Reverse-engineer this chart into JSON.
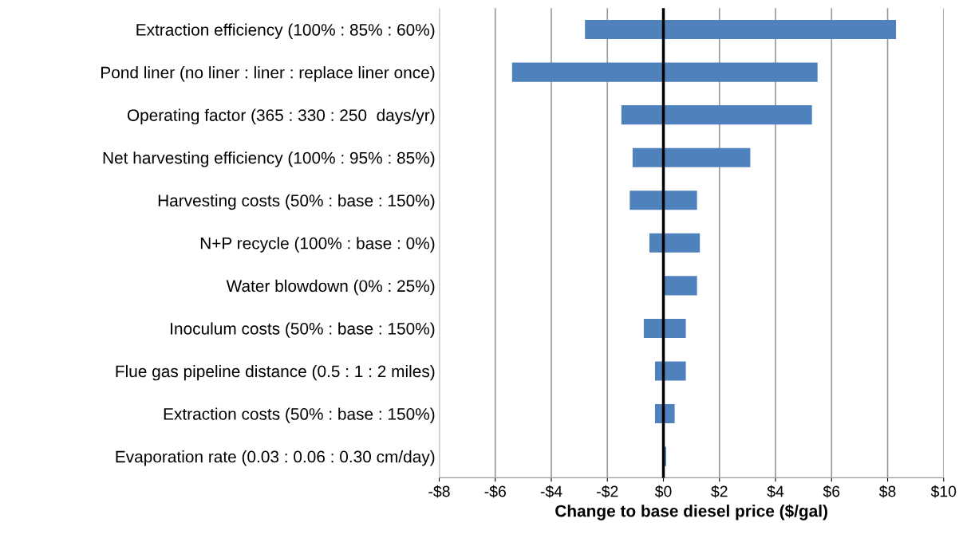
{
  "chart_data": {
    "type": "bar",
    "orientation": "horizontal",
    "xlabel": "Change to base diesel price ($/gal)",
    "categories": [
      "Extraction efficiency (100% : 85% : 60%)",
      "Pond liner (no liner : liner : replace liner once)",
      "Operating factor (365 : 330 : 250  days/yr)",
      "Net harvesting efficiency (100% : 95% : 85%)",
      "Harvesting costs (50% : base : 150%)",
      "N+P recycle (100% : base : 0%)",
      "Water blowdown (0% : 25%)",
      "Inoculum costs (50% : base : 150%)",
      "Flue gas pipeline distance (0.5 : 1 : 2 miles)",
      "Extraction costs (50% : base : 150%)",
      "Evaporation rate (0.03 : 0.06 : 0.30 cm/day)"
    ],
    "base": [
      -2.8,
      -5.4,
      -1.5,
      -1.1,
      -1.2,
      -0.5,
      0,
      -0.7,
      -0.3,
      -0.3,
      0
    ],
    "values": [
      11.1,
      10.9,
      6.8,
      4.2,
      2.4,
      1.8,
      1.2,
      1.5,
      1.1,
      0.7,
      0.1
    ],
    "color": "#4f81bd",
    "xlim": [
      -8,
      10
    ],
    "xticks": [
      {
        "value": -8,
        "label": "-$8"
      },
      {
        "value": -6,
        "label": "-$6"
      },
      {
        "value": -4,
        "label": "-$4"
      },
      {
        "value": -2,
        "label": "-$2"
      },
      {
        "value": 0,
        "label": "$0"
      },
      {
        "value": 2,
        "label": "$2"
      },
      {
        "value": 4,
        "label": "$4"
      },
      {
        "value": 6,
        "label": "$6"
      },
      {
        "value": 8,
        "label": "$8"
      },
      {
        "value": 10,
        "label": "$10"
      }
    ],
    "grid": "x",
    "ref_lines": [
      {
        "axis": "x",
        "value": 0,
        "color": "#000000"
      }
    ]
  }
}
